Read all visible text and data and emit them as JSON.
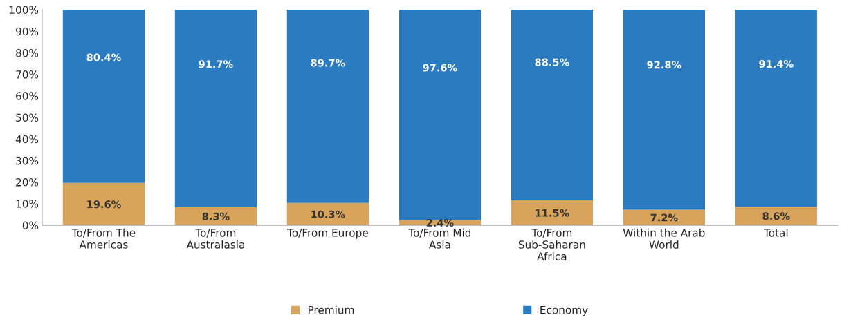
{
  "chart_data": {
    "type": "bar",
    "stacked": true,
    "categories": [
      "To/From The Americas",
      "To/From Australasia",
      "To/From Europe",
      "To/From Mid Asia",
      "To/From Sub-Saharan Africa",
      "Within the Arab World",
      "Total"
    ],
    "series": [
      {
        "name": "Premium",
        "color": "#d8a35a",
        "values": [
          19.6,
          8.3,
          10.3,
          2.4,
          11.5,
          7.2,
          8.6
        ],
        "value_labels": [
          "19.6%",
          "8.3%",
          "10.3%",
          "2.4%",
          "11.5%",
          "7.2%",
          "8.6%"
        ]
      },
      {
        "name": "Economy",
        "color": "#2b7bc0",
        "values": [
          80.4,
          91.7,
          89.7,
          97.6,
          88.5,
          92.8,
          91.4
        ],
        "value_labels": [
          "80.4%",
          "91.7%",
          "89.7%",
          "97.6%",
          "88.5%",
          "92.8%",
          "91.4%"
        ]
      }
    ],
    "ylim": [
      0,
      100
    ],
    "yticks": [
      {
        "value": 0,
        "label": "0%"
      },
      {
        "value": 10,
        "label": "10%"
      },
      {
        "value": 20,
        "label": "20%"
      },
      {
        "value": 30,
        "label": "30%"
      },
      {
        "value": 40,
        "label": "40%"
      },
      {
        "value": 50,
        "label": "50%"
      },
      {
        "value": 60,
        "label": "60%"
      },
      {
        "value": 70,
        "label": "70%"
      },
      {
        "value": 80,
        "label": "80%"
      },
      {
        "value": 90,
        "label": "90%"
      },
      {
        "value": 100,
        "label": "100%"
      }
    ],
    "grid": false,
    "legend": "bottom"
  }
}
